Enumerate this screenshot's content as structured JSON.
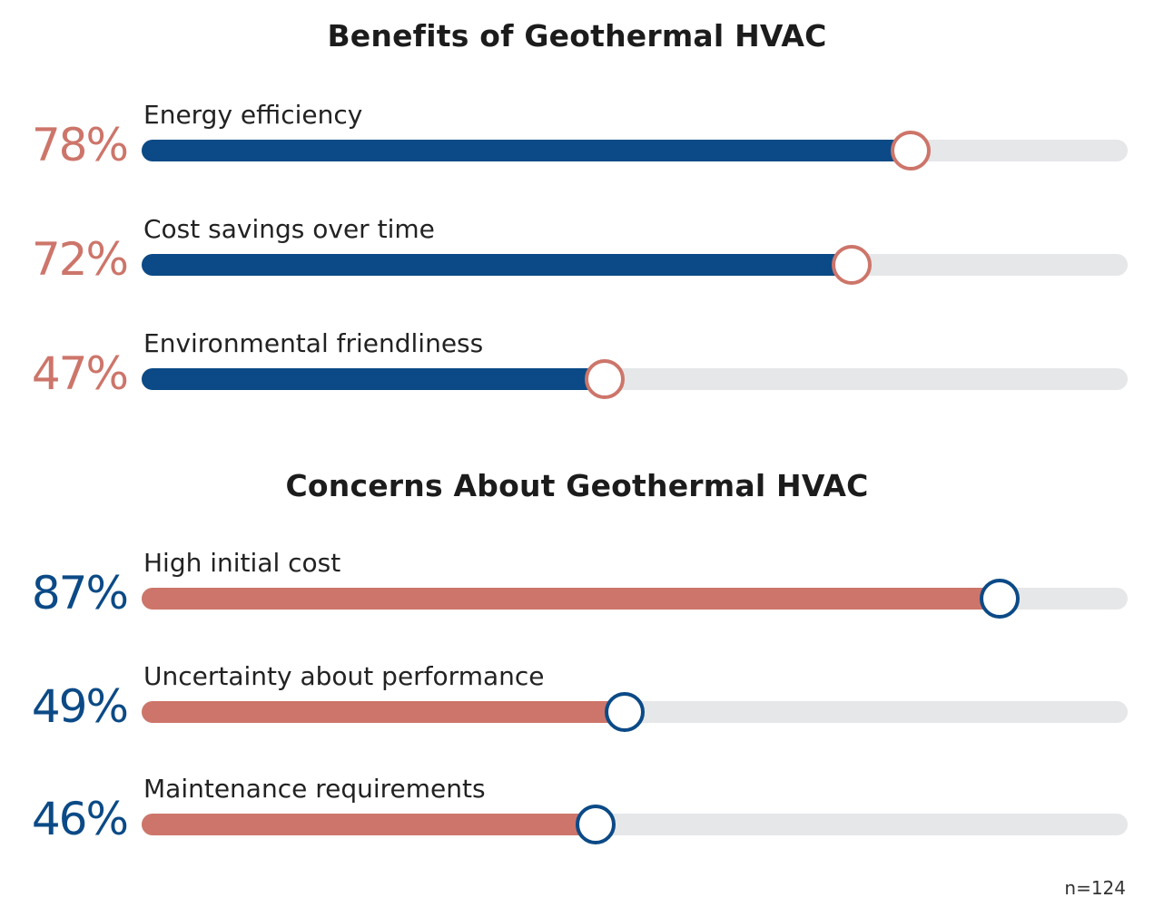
{
  "chart_data": [
    {
      "type": "bar",
      "title": "Benefits of Geothermal HVAC",
      "categories": [
        "Energy efficiency",
        "Cost savings over time",
        "Environmental friendliness"
      ],
      "values": [
        78,
        72,
        47
      ],
      "value_labels": [
        "78%",
        "72%",
        "47%"
      ],
      "ylim": [
        0,
        100
      ],
      "orientation": "horizontal",
      "grid": false,
      "colors": {
        "fill": "#0b4a86",
        "track": "#e6e7e9",
        "knob_border": "#cd756a",
        "value_text": "#cd756a"
      }
    },
    {
      "type": "bar",
      "title": "Concerns About Geothermal HVAC",
      "categories": [
        "High initial cost",
        "Uncertainty about performance",
        "Maintenance requirements"
      ],
      "values": [
        87,
        49,
        46
      ],
      "value_labels": [
        "87%",
        "49%",
        "46%"
      ],
      "ylim": [
        0,
        100
      ],
      "orientation": "horizontal",
      "grid": false,
      "colors": {
        "fill": "#cd756a",
        "track": "#e6e7e9",
        "knob_border": "#0b4a86",
        "value_text": "#0b4a86"
      }
    }
  ],
  "footnote": "n=124"
}
